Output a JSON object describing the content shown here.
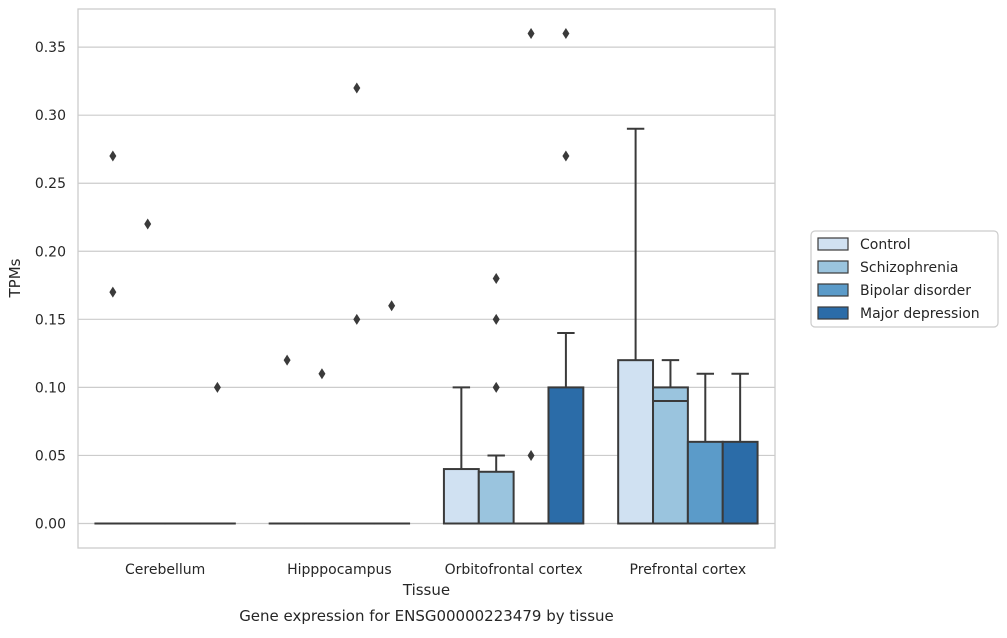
{
  "chart_data": {
    "type": "boxplot",
    "caption": "Gene expression for ENSG00000223479 by tissue",
    "xlabel": "Tissue",
    "ylabel": "TPMs",
    "ylim": [
      -0.018,
      0.378
    ],
    "yticks": [
      0.0,
      0.05,
      0.1,
      0.15,
      0.2,
      0.25,
      0.3,
      0.35
    ],
    "ytick_labels": [
      "0.00",
      "0.05",
      "0.10",
      "0.15",
      "0.20",
      "0.25",
      "0.30",
      "0.35"
    ],
    "grid": "horizontal",
    "legend_position": "right",
    "categories": [
      "Cerebellum",
      "Hipppocampus",
      "Orbitofrontal cortex",
      "Prefrontal cortex"
    ],
    "series": [
      {
        "name": "Control",
        "color": "#d0e1f2",
        "boxes": [
          {
            "q1": 0.0,
            "median": 0.0,
            "q3": 0.0,
            "whisker_low": 0.0,
            "whisker_high": 0.0,
            "outliers": [
              0.17,
              0.27
            ]
          },
          {
            "q1": 0.0,
            "median": 0.0,
            "q3": 0.0,
            "whisker_low": 0.0,
            "whisker_high": 0.0,
            "outliers": [
              0.12
            ]
          },
          {
            "q1": 0.0,
            "median": 0.0,
            "q3": 0.04,
            "whisker_low": 0.0,
            "whisker_high": 0.1,
            "outliers": []
          },
          {
            "q1": 0.0,
            "median": 0.0,
            "q3": 0.12,
            "whisker_low": 0.0,
            "whisker_high": 0.29,
            "outliers": []
          }
        ]
      },
      {
        "name": "Schizophrenia",
        "color": "#9ac4de",
        "boxes": [
          {
            "q1": 0.0,
            "median": 0.0,
            "q3": 0.0,
            "whisker_low": 0.0,
            "whisker_high": 0.0,
            "outliers": [
              0.22
            ]
          },
          {
            "q1": 0.0,
            "median": 0.0,
            "q3": 0.0,
            "whisker_low": 0.0,
            "whisker_high": 0.0,
            "outliers": [
              0.11
            ]
          },
          {
            "q1": 0.0,
            "median": 0.0,
            "q3": 0.038,
            "whisker_low": 0.0,
            "whisker_high": 0.05,
            "outliers": [
              0.1,
              0.15,
              0.18
            ]
          },
          {
            "q1": 0.0,
            "median": 0.09,
            "q3": 0.1,
            "whisker_low": 0.0,
            "whisker_high": 0.12,
            "outliers": []
          }
        ]
      },
      {
        "name": "Bipolar disorder",
        "color": "#5b9bc9",
        "boxes": [
          {
            "q1": 0.0,
            "median": 0.0,
            "q3": 0.0,
            "whisker_low": 0.0,
            "whisker_high": 0.0,
            "outliers": []
          },
          {
            "q1": 0.0,
            "median": 0.0,
            "q3": 0.0,
            "whisker_low": 0.0,
            "whisker_high": 0.0,
            "outliers": [
              0.32,
              0.15
            ]
          },
          {
            "q1": 0.0,
            "median": 0.0,
            "q3": 0.0,
            "whisker_low": 0.0,
            "whisker_high": 0.0,
            "outliers": [
              0.05,
              0.36
            ]
          },
          {
            "q1": 0.0,
            "median": 0.0,
            "q3": 0.06,
            "whisker_low": 0.0,
            "whisker_high": 0.11,
            "outliers": []
          }
        ]
      },
      {
        "name": "Major depression",
        "color": "#2b6ca8",
        "boxes": [
          {
            "q1": 0.0,
            "median": 0.0,
            "q3": 0.0,
            "whisker_low": 0.0,
            "whisker_high": 0.0,
            "outliers": [
              0.1
            ]
          },
          {
            "q1": 0.0,
            "median": 0.0,
            "q3": 0.0,
            "whisker_low": 0.0,
            "whisker_high": 0.0,
            "outliers": [
              0.16
            ]
          },
          {
            "q1": 0.0,
            "median": 0.0,
            "q3": 0.1,
            "whisker_low": 0.0,
            "whisker_high": 0.14,
            "outliers": [
              0.27,
              0.36
            ]
          },
          {
            "q1": 0.0,
            "median": 0.0,
            "q3": 0.06,
            "whisker_low": 0.0,
            "whisker_high": 0.11,
            "outliers": []
          }
        ]
      }
    ]
  }
}
